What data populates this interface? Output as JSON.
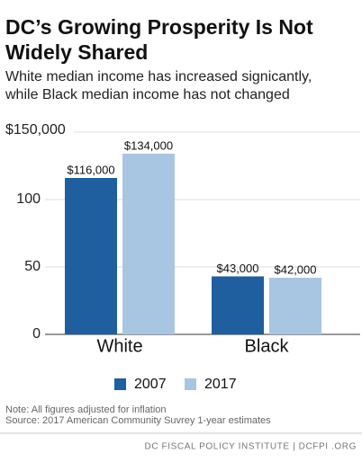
{
  "chart_data": {
    "type": "bar",
    "title": [
      "DC’s Growing Prosperity Is Not",
      "Widely Shared"
    ],
    "subtitle": [
      "White median income has increased signicantly,",
      "while Black median income has not changed"
    ],
    "categories": [
      "White",
      "Black"
    ],
    "series": [
      {
        "name": "2007",
        "color": "#1f5e9f",
        "values": [
          116000,
          43000
        ],
        "value_labels": [
          "$116,000",
          "$43,000"
        ]
      },
      {
        "name": "2017",
        "color": "#a8c6e1",
        "values": [
          134000,
          42000
        ],
        "value_labels": [
          "$134,000",
          "$42,000"
        ]
      }
    ],
    "ylim": [
      0,
      150000
    ],
    "yticks": [
      0,
      {
        "value": 50000,
        "label": "50"
      },
      {
        "value": 100000,
        "label": "100"
      },
      {
        "value": 150000,
        "label": "$150,000"
      }
    ],
    "grid": true,
    "notes": [
      "Note: All figures adjusted for inflation",
      "Source: 2017 American Community Suvrey 1-year estimates"
    ],
    "footer": "DC FISCAL POLICY INSTITUTE | DCFPI .ORG"
  }
}
